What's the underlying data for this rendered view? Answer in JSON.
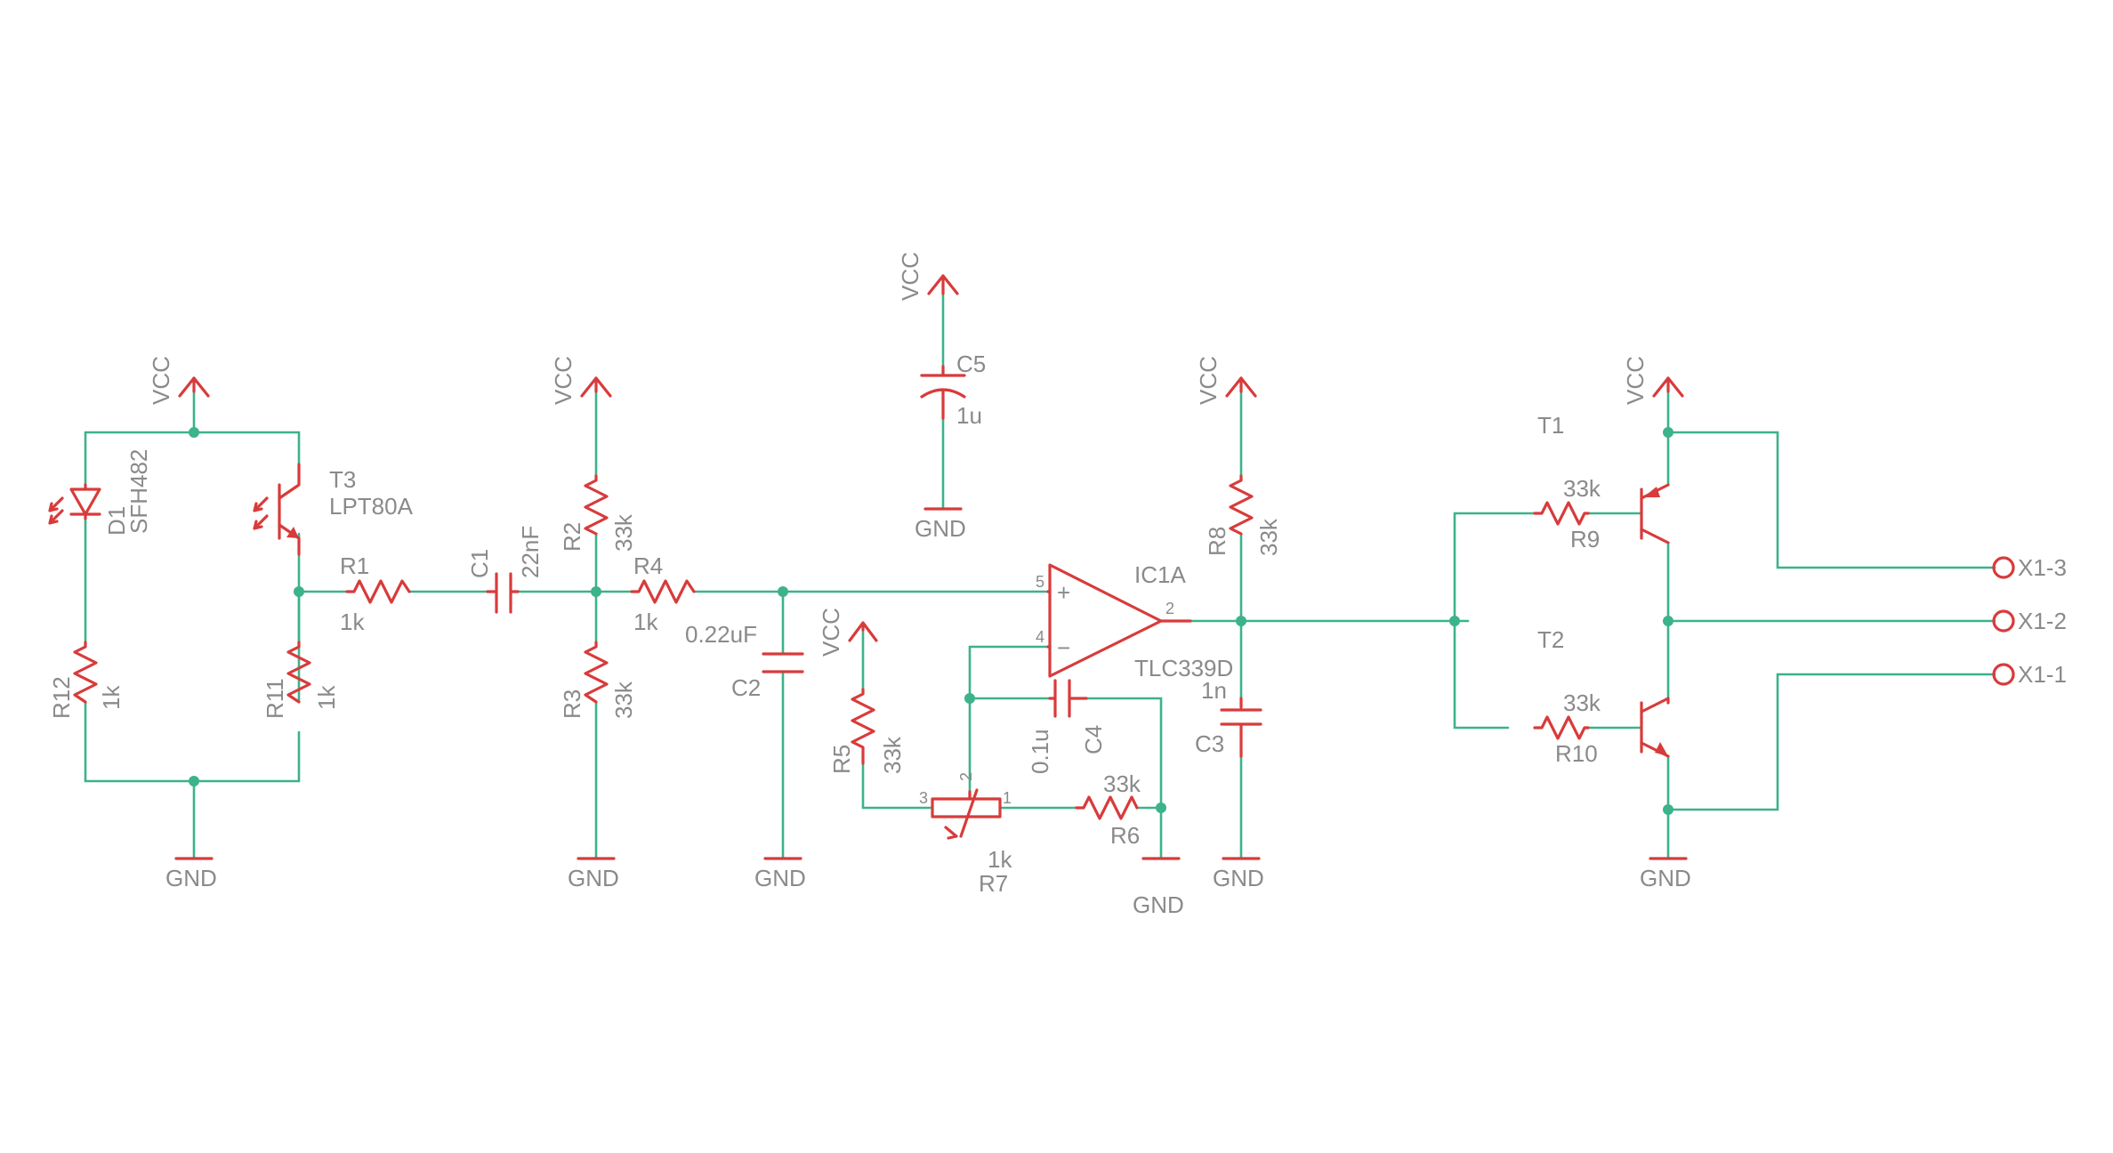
{
  "power": {
    "vcc": "VCC",
    "gnd": "GND"
  },
  "input": {
    "d1": {
      "ref": "D1",
      "value": "SFH482"
    },
    "t3": {
      "ref": "T3",
      "value": "LPT80A"
    },
    "r12": {
      "ref": "R12",
      "value": "1k"
    },
    "r11": {
      "ref": "R11",
      "value": "1k"
    },
    "r1": {
      "ref": "R1",
      "value": "1k"
    },
    "c1": {
      "ref": "C1",
      "value": "22nF"
    },
    "r2": {
      "ref": "R2",
      "value": "33k"
    },
    "r3": {
      "ref": "R3",
      "value": "33k"
    },
    "r4": {
      "ref": "R4",
      "value": "1k"
    },
    "c2": {
      "ref": "C2",
      "value": "0.22uF"
    }
  },
  "supply": {
    "c5": {
      "ref": "C5",
      "value": "1u"
    }
  },
  "comparator": {
    "ic": {
      "ref": "IC1A",
      "value": "TLC339D",
      "pin_plus": "5",
      "pin_minus": "4",
      "pin_out": "2",
      "sign_plus": "+",
      "sign_minus": "−"
    },
    "r5": {
      "ref": "R5",
      "value": "33k"
    },
    "r7": {
      "ref": "R7",
      "value": "1k",
      "pin1": "1",
      "pin2": "2",
      "pin3": "3"
    },
    "r6": {
      "ref": "R6",
      "value": "33k"
    },
    "c4": {
      "ref": "C4",
      "value": "0.1u"
    },
    "r8": {
      "ref": "R8",
      "value": "33k"
    },
    "c3": {
      "ref": "C3",
      "value": "1n"
    }
  },
  "output": {
    "t1": {
      "ref": "T1"
    },
    "t2": {
      "ref": "T2"
    },
    "r9": {
      "ref": "R9",
      "value": "33k"
    },
    "r10": {
      "ref": "R10",
      "value": "33k"
    },
    "x1_3": "X1-3",
    "x1_2": "X1-2",
    "x1_1": "X1-1"
  },
  "colors": {
    "wire": "#3cb38a",
    "component": "#d83b3b",
    "label": "#8a8a8a",
    "background": "#ffffff"
  }
}
